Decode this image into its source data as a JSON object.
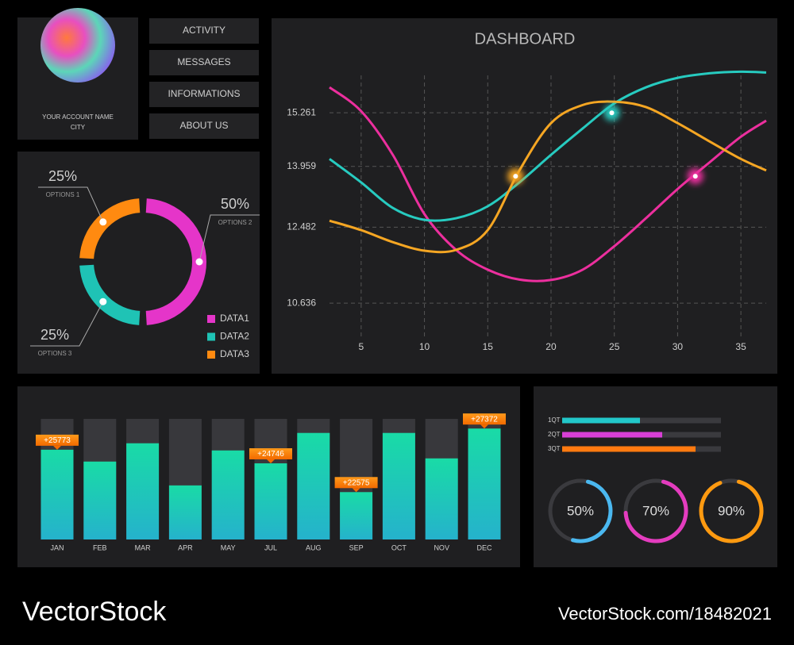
{
  "profile": {
    "name": "YOUR ACCOUNT NAME",
    "city": "CITY"
  },
  "menu": [
    "ACTIVITY",
    "MESSAGES",
    "INFORMATIONS",
    "ABOUT US"
  ],
  "chart_data": [
    {
      "type": "donut",
      "categories": [
        "OPTIONS 2",
        "OPTIONS 3",
        "OPTIONS 1"
      ],
      "values": [
        50,
        25,
        25
      ],
      "value_labels": [
        "50%",
        "25%",
        "25%"
      ],
      "colors": [
        "#e535c9",
        "#1fc3b5",
        "#ff8a10"
      ],
      "legend": [
        {
          "name": "DATA1",
          "color": "#e535c9"
        },
        {
          "name": "DATA2",
          "color": "#1fc3b5"
        },
        {
          "name": "DATA3",
          "color": "#ff8a10"
        }
      ]
    },
    {
      "type": "line",
      "title": "DASHBOARD",
      "x": [
        2.5,
        5,
        7.5,
        10,
        12.5,
        15,
        17.5,
        20,
        22.5,
        25,
        27.5,
        30,
        32.5,
        35,
        37
      ],
      "xlim": [
        2.5,
        37
      ],
      "xticks": [
        5,
        10,
        15,
        20,
        25,
        30,
        35
      ],
      "ylim": [
        9.81,
        16.17
      ],
      "yticks": [
        10.636,
        12.482,
        13.959,
        15.261
      ],
      "grid": true,
      "series": [
        {
          "color": "#ec2f9e",
          "values": [
            15.88,
            15.3,
            14.24,
            12.8,
            11.93,
            11.45,
            11.21,
            11.2,
            11.45,
            12.02,
            12.7,
            13.41,
            14.05,
            14.68,
            15.07
          ],
          "highlight": {
            "x": 31.4,
            "y": 13.72
          }
        },
        {
          "color": "#27cbc0",
          "values": [
            14.14,
            13.57,
            12.95,
            12.66,
            12.7,
            12.99,
            13.57,
            14.24,
            14.88,
            15.49,
            15.88,
            16.11,
            16.22,
            16.26,
            16.24
          ],
          "highlight": {
            "x": 24.8,
            "y": 15.26
          }
        },
        {
          "color": "#f5a623",
          "values": [
            12.64,
            12.41,
            12.12,
            11.91,
            11.93,
            12.41,
            13.86,
            15.01,
            15.45,
            15.53,
            15.4,
            15.01,
            14.57,
            14.14,
            13.86
          ],
          "highlight": {
            "x": 17.2,
            "y": 13.72
          }
        }
      ]
    },
    {
      "type": "bar",
      "categories": [
        "JAN",
        "FEB",
        "MAR",
        "APR",
        "MAY",
        "JUL",
        "AUG",
        "SEP",
        "OCT",
        "NOV",
        "DEC"
      ],
      "values": [
        25773,
        24880,
        26260,
        23080,
        25720,
        24746,
        27040,
        22575,
        27040,
        25120,
        27372
      ],
      "value_labels": [
        "+25773",
        null,
        null,
        null,
        null,
        "+24746",
        null,
        "+22575",
        null,
        null,
        "+27372"
      ],
      "ylim": [
        19000,
        28100
      ]
    },
    {
      "type": "progress",
      "categories": [
        "1QT",
        "2QT",
        "3QT"
      ],
      "values": [
        49,
        63,
        84
      ],
      "colors": [
        "#22c7c9",
        "#d83fd6",
        "#ff7a10"
      ],
      "xlim": [
        0,
        100
      ]
    },
    {
      "type": "ring",
      "values": [
        50,
        70,
        90
      ],
      "value_labels": [
        "50%",
        "70%",
        "90%"
      ],
      "colors": [
        "#4ab8f0",
        "#e43cbf",
        "#ff9a10"
      ]
    }
  ],
  "watermark": {
    "brand": "VectorStock",
    "url": "VectorStock.com/18482021"
  }
}
